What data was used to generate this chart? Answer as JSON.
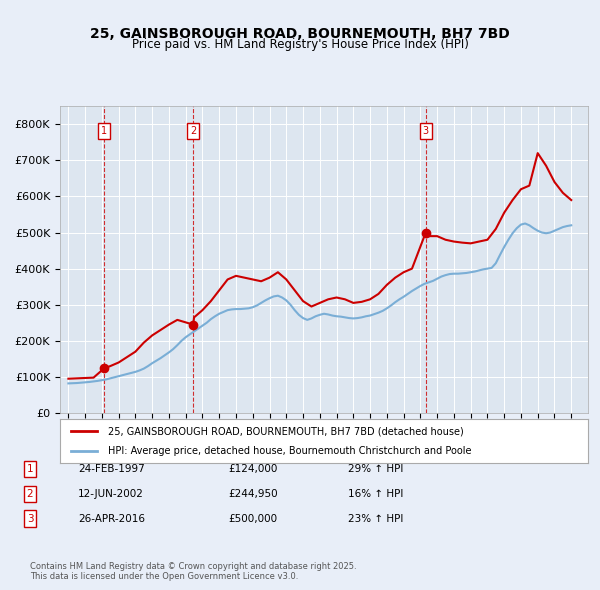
{
  "title": "25, GAINSBOROUGH ROAD, BOURNEMOUTH, BH7 7BD",
  "subtitle": "Price paid vs. HM Land Registry's House Price Index (HPI)",
  "background_color": "#e8eef8",
  "plot_bg_color": "#dde6f0",
  "transactions": [
    {
      "num": 1,
      "date": "24-FEB-1997",
      "price": 124000,
      "pct": "29%",
      "year_float": 1997.14
    },
    {
      "num": 2,
      "date": "12-JUN-2002",
      "price": 244950,
      "pct": "16%",
      "year_float": 2002.44
    },
    {
      "num": 3,
      "date": "26-APR-2016",
      "price": 500000,
      "pct": "23%",
      "year_float": 2016.32
    }
  ],
  "hpi_line_color": "#7aaed6",
  "price_line_color": "#cc0000",
  "dashed_line_color": "#cc0000",
  "legend_text_red": "25, GAINSBOROUGH ROAD, BOURNEMOUTH, BH7 7BD (detached house)",
  "legend_text_blue": "HPI: Average price, detached house, Bournemouth Christchurch and Poole",
  "footer": "Contains HM Land Registry data © Crown copyright and database right 2025.\nThis data is licensed under the Open Government Licence v3.0.",
  "xmin": 1994.5,
  "xmax": 2026.0,
  "ymin": 0,
  "ymax": 850000,
  "yticks": [
    0,
    100000,
    200000,
    300000,
    400000,
    500000,
    600000,
    700000,
    800000
  ],
  "ylabels": [
    "£0",
    "£100K",
    "£200K",
    "£300K",
    "£400K",
    "£500K",
    "£600K",
    "£700K",
    "£800K"
  ],
  "hpi_data_x": [
    1995.0,
    1995.25,
    1995.5,
    1995.75,
    1996.0,
    1996.25,
    1996.5,
    1996.75,
    1997.0,
    1997.25,
    1997.5,
    1997.75,
    1998.0,
    1998.25,
    1998.5,
    1998.75,
    1999.0,
    1999.25,
    1999.5,
    1999.75,
    2000.0,
    2000.25,
    2000.5,
    2000.75,
    2001.0,
    2001.25,
    2001.5,
    2001.75,
    2002.0,
    2002.25,
    2002.5,
    2002.75,
    2003.0,
    2003.25,
    2003.5,
    2003.75,
    2004.0,
    2004.25,
    2004.5,
    2004.75,
    2005.0,
    2005.25,
    2005.5,
    2005.75,
    2006.0,
    2006.25,
    2006.5,
    2006.75,
    2007.0,
    2007.25,
    2007.5,
    2007.75,
    2008.0,
    2008.25,
    2008.5,
    2008.75,
    2009.0,
    2009.25,
    2009.5,
    2009.75,
    2010.0,
    2010.25,
    2010.5,
    2010.75,
    2011.0,
    2011.25,
    2011.5,
    2011.75,
    2012.0,
    2012.25,
    2012.5,
    2012.75,
    2013.0,
    2013.25,
    2013.5,
    2013.75,
    2014.0,
    2014.25,
    2014.5,
    2014.75,
    2015.0,
    2015.25,
    2015.5,
    2015.75,
    2016.0,
    2016.25,
    2016.5,
    2016.75,
    2017.0,
    2017.25,
    2017.5,
    2017.75,
    2018.0,
    2018.25,
    2018.5,
    2018.75,
    2019.0,
    2019.25,
    2019.5,
    2019.75,
    2020.0,
    2020.25,
    2020.5,
    2020.75,
    2021.0,
    2021.25,
    2021.5,
    2021.75,
    2022.0,
    2022.25,
    2022.5,
    2022.75,
    2023.0,
    2023.25,
    2023.5,
    2023.75,
    2024.0,
    2024.25,
    2024.5,
    2024.75,
    2025.0
  ],
  "hpi_data_y": [
    82000,
    82500,
    83000,
    84000,
    85000,
    86000,
    87500,
    89000,
    91000,
    93000,
    96000,
    99000,
    102000,
    105000,
    108000,
    111000,
    114000,
    118000,
    123000,
    130000,
    138000,
    145000,
    152000,
    160000,
    168000,
    177000,
    188000,
    200000,
    210000,
    218000,
    226000,
    234000,
    242000,
    250000,
    260000,
    268000,
    275000,
    280000,
    285000,
    287000,
    288000,
    288000,
    289000,
    290000,
    293000,
    298000,
    305000,
    312000,
    318000,
    323000,
    325000,
    320000,
    312000,
    300000,
    285000,
    272000,
    263000,
    258000,
    262000,
    268000,
    272000,
    275000,
    273000,
    270000,
    268000,
    267000,
    265000,
    263000,
    262000,
    263000,
    265000,
    268000,
    270000,
    274000,
    278000,
    283000,
    290000,
    298000,
    307000,
    315000,
    322000,
    330000,
    338000,
    345000,
    352000,
    358000,
    362000,
    366000,
    372000,
    378000,
    382000,
    385000,
    386000,
    386000,
    387000,
    388000,
    390000,
    392000,
    395000,
    398000,
    400000,
    402000,
    415000,
    438000,
    460000,
    480000,
    498000,
    512000,
    522000,
    525000,
    520000,
    512000,
    505000,
    500000,
    498000,
    500000,
    505000,
    510000,
    515000,
    518000,
    520000
  ],
  "price_data_x": [
    1995.0,
    1995.5,
    1996.0,
    1996.5,
    1997.14,
    1997.5,
    1998.0,
    1998.5,
    1999.0,
    1999.5,
    2000.0,
    2000.5,
    2001.0,
    2001.5,
    2002.44,
    2002.5,
    2003.0,
    2003.5,
    2004.0,
    2004.5,
    2005.0,
    2005.5,
    2006.0,
    2006.5,
    2007.0,
    2007.5,
    2008.0,
    2008.5,
    2009.0,
    2009.5,
    2010.0,
    2010.5,
    2011.0,
    2011.5,
    2012.0,
    2012.5,
    2013.0,
    2013.5,
    2014.0,
    2014.5,
    2015.0,
    2015.5,
    2016.32,
    2016.5,
    2017.0,
    2017.5,
    2018.0,
    2018.5,
    2019.0,
    2019.5,
    2020.0,
    2020.5,
    2021.0,
    2021.5,
    2022.0,
    2022.5,
    2023.0,
    2023.5,
    2024.0,
    2024.5,
    2025.0
  ],
  "price_data_y": [
    95000,
    96000,
    97000,
    98000,
    124000,
    130000,
    140000,
    155000,
    170000,
    195000,
    215000,
    230000,
    245000,
    258000,
    244950,
    265000,
    285000,
    310000,
    340000,
    370000,
    380000,
    375000,
    370000,
    365000,
    375000,
    390000,
    370000,
    340000,
    310000,
    295000,
    305000,
    315000,
    320000,
    315000,
    305000,
    308000,
    315000,
    330000,
    355000,
    375000,
    390000,
    400000,
    500000,
    490000,
    490000,
    480000,
    475000,
    472000,
    470000,
    475000,
    480000,
    510000,
    555000,
    590000,
    620000,
    630000,
    720000,
    685000,
    640000,
    610000,
    590000
  ]
}
